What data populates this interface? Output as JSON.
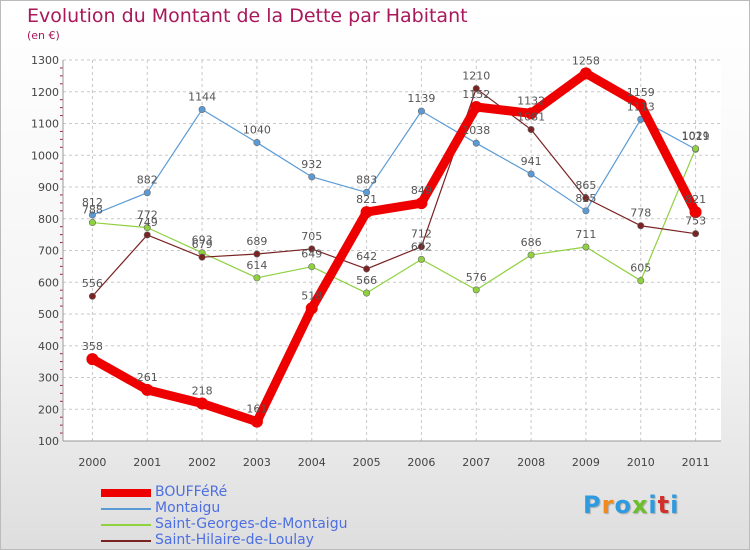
{
  "title": "Evolution du Montant de la Dette par Habitant",
  "subtitle": "(en €)",
  "brand": {
    "text": "Proxiti",
    "colors": [
      "#2e9be0",
      "#f08a1c",
      "#2e9be0",
      "#6cbf2a",
      "#2e9be0",
      "#d4302a",
      "#2e9be0"
    ]
  },
  "chart_data": {
    "type": "line",
    "x": [
      "2000",
      "2001",
      "2002",
      "2003",
      "2004",
      "2005",
      "2006",
      "2007",
      "2008",
      "2009",
      "2010",
      "2011"
    ],
    "ylim": [
      100,
      1300
    ],
    "yticks": [
      100,
      200,
      300,
      400,
      500,
      600,
      700,
      800,
      900,
      1000,
      1100,
      1200,
      1300
    ],
    "grid": true,
    "legend_position": "bottom-left",
    "series": [
      {
        "name": "BOUFFéRé",
        "color": "#ee0000",
        "values": [
          358,
          261,
          218,
          161,
          518,
          821,
          849,
          1152,
          1132,
          1258,
          1159,
          821
        ]
      },
      {
        "name": "Montaigu",
        "color": "#5b9bd5",
        "values": [
          812,
          882,
          1144,
          1040,
          932,
          883,
          1139,
          1038,
          941,
          825,
          1113,
          1019
        ]
      },
      {
        "name": "Saint-Georges-de-Montaigu",
        "color": "#8fd13f",
        "values": [
          788,
          772,
          693,
          614,
          649,
          566,
          672,
          576,
          686,
          711,
          605,
          1021
        ]
      },
      {
        "name": "Saint-Hilaire-de-Loulay",
        "color": "#7a2323",
        "values": [
          556,
          749,
          679,
          689,
          705,
          642,
          712,
          1210,
          1081,
          865,
          778,
          753
        ]
      }
    ]
  }
}
